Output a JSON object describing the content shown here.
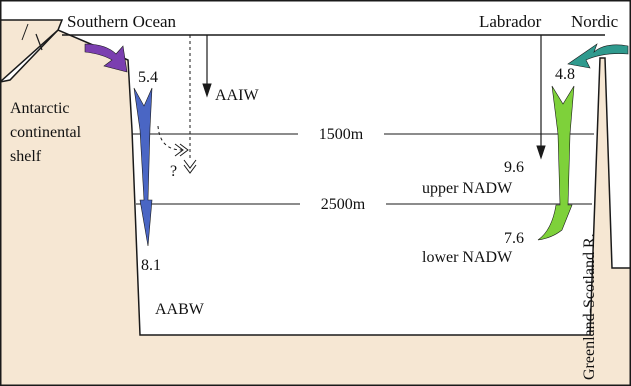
{
  "labels": {
    "southern_ocean": "Southern Ocean",
    "labrador": "Labrador",
    "nordic": "Nordic",
    "antarctic_line1": "Antarctic",
    "antarctic_line2": "continental",
    "antarctic_line3": "shelf",
    "aaiw": "AAIW",
    "aabw": "AABW",
    "depth_1500": "1500m",
    "depth_2500": "2500m",
    "question_mark": "?",
    "upper_nadw": "upper NADW",
    "lower_nadw": "lower NADW",
    "ridge": "Greenland-Scotland R."
  },
  "values": {
    "southern_inflow": "5.4",
    "southern_bottom": "8.1",
    "nordic_inflow": "4.8",
    "upper_nadw": "9.6",
    "lower_nadw": "7.6"
  },
  "colors": {
    "land": "#f6e7d3",
    "outline": "#1a1a1a",
    "southern_inflow_arrow": "#7b3fb0",
    "southern_sinking_arrow": "#4a66c4",
    "nordic_inflow_arrow": "#2f9a8e",
    "nadw_sinking_arrow": "#7ed13a"
  }
}
